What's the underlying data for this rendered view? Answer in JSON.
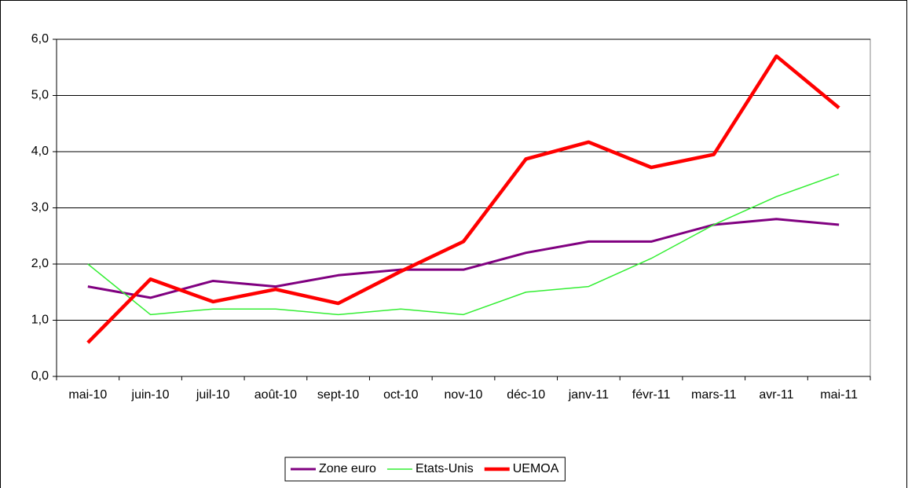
{
  "chart_data": {
    "type": "line",
    "categories": [
      "mai-10",
      "juin-10",
      "juil-10",
      "août-10",
      "sept-10",
      "oct-10",
      "nov-10",
      "déc-10",
      "janv-11",
      "févr-11",
      "mars-11",
      "avr-11",
      "mai-11"
    ],
    "series": [
      {
        "name": "Zone euro",
        "color": "#800080",
        "width": 3,
        "values": [
          1.6,
          1.4,
          1.7,
          1.6,
          1.8,
          1.9,
          1.9,
          2.2,
          2.4,
          2.4,
          2.7,
          2.8,
          2.7
        ]
      },
      {
        "name": "Etats-Unis",
        "color": "#33ee33",
        "width": 1.5,
        "values": [
          2.0,
          1.1,
          1.2,
          1.2,
          1.1,
          1.2,
          1.1,
          1.5,
          1.6,
          2.1,
          2.7,
          3.2,
          3.6
        ]
      },
      {
        "name": "UEMOA",
        "color": "#ff0000",
        "width": 4.5,
        "values": [
          0.6,
          1.73,
          1.33,
          1.55,
          1.3,
          1.87,
          2.4,
          3.87,
          4.17,
          3.72,
          3.95,
          5.7,
          4.78
        ]
      }
    ],
    "ylim": [
      0,
      6
    ],
    "yticks": [
      {
        "value": 0,
        "label": "0,0"
      },
      {
        "value": 1,
        "label": "1,0"
      },
      {
        "value": 2,
        "label": "2,0"
      },
      {
        "value": 3,
        "label": "3,0"
      },
      {
        "value": 4,
        "label": "4,0"
      },
      {
        "value": 5,
        "label": "5,0"
      },
      {
        "value": 6,
        "label": "6,0"
      }
    ],
    "grid": true,
    "legend": "bottom"
  }
}
